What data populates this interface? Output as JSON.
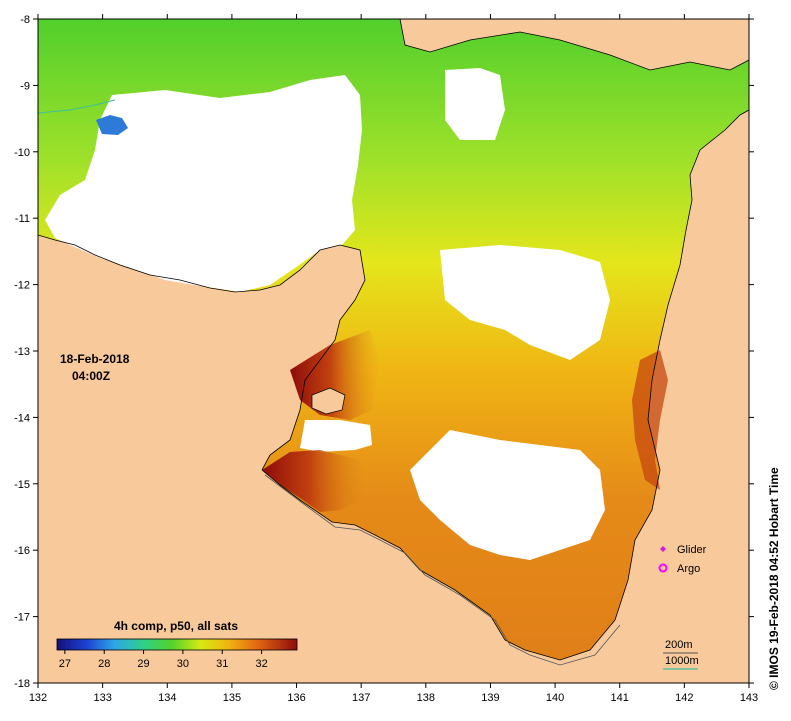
{
  "map": {
    "datetime": "18-Feb-2018",
    "time": "04:00Z",
    "provider_stamp": "© IMOS 19-Feb-2018 04:52 Hobart Time",
    "x_ticks": [
      "132",
      "133",
      "134",
      "135",
      "136",
      "137",
      "138",
      "139",
      "140",
      "141",
      "142",
      "143"
    ],
    "y_ticks": [
      "-8",
      "-9",
      "-10",
      "-11",
      "-12",
      "-13",
      "-14",
      "-15",
      "-16",
      "-17",
      "-18"
    ],
    "colorbar": {
      "title": "4h comp, p50, all sats",
      "labels": [
        "27",
        "28",
        "29",
        "30",
        "31",
        "32"
      ],
      "range": [
        26.8,
        32.9
      ]
    },
    "legend": {
      "glider_label": "Glider",
      "argo_label": "Argo"
    },
    "contours": {
      "label_200": "200m",
      "label_1000": "1000m"
    },
    "colors": {
      "land": "#F8C99B",
      "glider": "#d81ad8",
      "argo": "#ff00ff",
      "contour_200": "#555555",
      "contour_1000": "#3dbf9f"
    }
  }
}
